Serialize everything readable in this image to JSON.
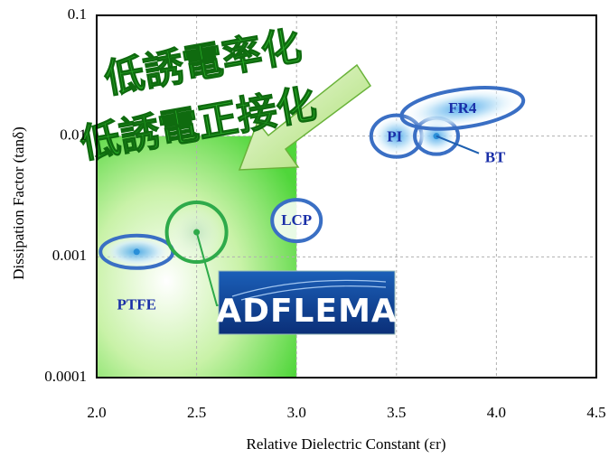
{
  "chart_data": {
    "type": "scatter",
    "x_label": "Relative Dielectric Constant (εr)",
    "y_label": "Dissipation Factor (tanδ)",
    "labels": [
      "PTFE",
      "ADFLEMA",
      "LCP",
      "PI",
      "BT",
      "FR4"
    ],
    "x": [
      2.2,
      2.5,
      3.0,
      3.5,
      3.7,
      3.83
    ],
    "values": [
      0.0011,
      0.0016,
      0.002,
      0.01,
      0.01,
      0.017
    ],
    "annotations": [
      "低誘電率化",
      "低誘電正接化"
    ],
    "highlight": {
      "xlim": [
        2.0,
        3.0
      ],
      "ylim": [
        0.0001,
        0.01
      ]
    },
    "xlim": [
      2.0,
      4.5
    ],
    "xticks": [
      {
        "value": 2.0,
        "label": "2.0"
      },
      {
        "value": 2.5,
        "label": "2.5"
      },
      {
        "value": 3.0,
        "label": "3.0"
      },
      {
        "value": 3.5,
        "label": "3.5"
      },
      {
        "value": 4.0,
        "label": "4.0"
      },
      {
        "value": 4.5,
        "label": "4.5"
      }
    ],
    "ylim": [
      0.0001,
      0.1
    ],
    "yticks": [
      0.0001,
      0.001,
      0.01,
      0.1
    ],
    "y_scale": "log",
    "grid": true
  }
}
